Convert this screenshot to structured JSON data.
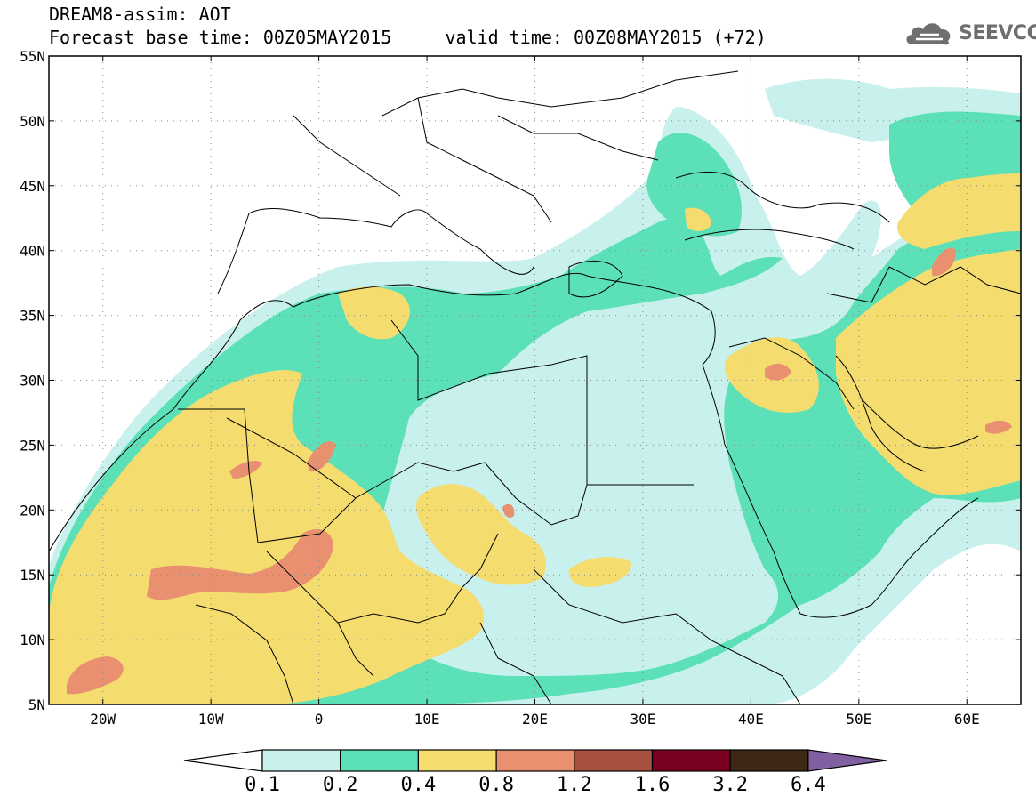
{
  "header": {
    "title_line1": "DREAM8-assim: AOT",
    "title_line2": "Forecast base time: 00Z05MAY2015     valid time: 00Z08MAY2015 (+72)",
    "logo_text": "SEEVCCC",
    "logo_icon": "cloud-icon"
  },
  "map": {
    "lon_range": [
      -25,
      65
    ],
    "lat_range": [
      5,
      55
    ],
    "lat_ticks": [
      {
        "value": 5,
        "label": "5N"
      },
      {
        "value": 10,
        "label": "10N"
      },
      {
        "value": 15,
        "label": "15N"
      },
      {
        "value": 20,
        "label": "20N"
      },
      {
        "value": 25,
        "label": "25N"
      },
      {
        "value": 30,
        "label": "30N"
      },
      {
        "value": 35,
        "label": "35N"
      },
      {
        "value": 40,
        "label": "40N"
      },
      {
        "value": 45,
        "label": "45N"
      },
      {
        "value": 50,
        "label": "50N"
      },
      {
        "value": 55,
        "label": "55N"
      }
    ],
    "lon_ticks": [
      {
        "value": -20,
        "label": "20W"
      },
      {
        "value": -10,
        "label": "10W"
      },
      {
        "value": 0,
        "label": "0"
      },
      {
        "value": 10,
        "label": "10E"
      },
      {
        "value": 20,
        "label": "20E"
      },
      {
        "value": 30,
        "label": "30E"
      },
      {
        "value": 40,
        "label": "40E"
      },
      {
        "value": 50,
        "label": "50E"
      },
      {
        "value": 60,
        "label": "60E"
      }
    ],
    "grid": true
  },
  "colorbar": {
    "labels": [
      "0.1",
      "0.2",
      "0.4",
      "0.8",
      "1.2",
      "1.6",
      "3.2",
      "6.4"
    ],
    "colors": [
      "#c8f0ec",
      "#5ce0b8",
      "#f5dc6e",
      "#e89070",
      "#a85040",
      "#7a0020",
      "#3c2814"
    ],
    "low_color": "#ffffff",
    "high_color": "#8060a0"
  }
}
